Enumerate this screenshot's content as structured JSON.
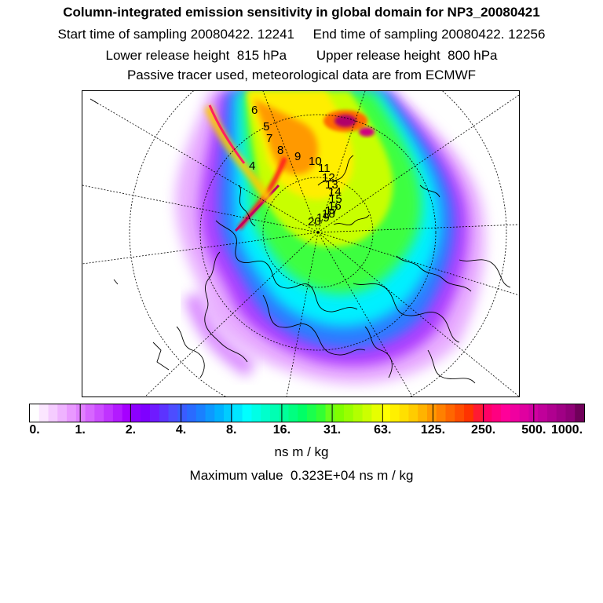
{
  "title": "Column-integrated emission sensitivity in global domain for NP3_20080421",
  "sampling_line": "Start time of sampling 20080422. 12241     End time of sampling 20080422. 12256",
  "release_line": "Lower release height  815 hPa        Upper release height  800 hPa",
  "tracer_line": "Passive tracer used, meteorological data are from ECMWF",
  "colorbar": {
    "labels": [
      "0.",
      "1.",
      "2.",
      "4.",
      "8.",
      "16.",
      "31.",
      "63.",
      "125.",
      "250.",
      "500.",
      "1000."
    ],
    "colors": [
      "#ffffff",
      "#fbe6ff",
      "#f5ccff",
      "#efb3ff",
      "#e999ff",
      "#e080ff",
      "#d766ff",
      "#cc4dff",
      "#c033ff",
      "#b31aff",
      "#a600ff",
      "#8c00ff",
      "#7f00ff",
      "#6f1aff",
      "#5c33ff",
      "#4d4dff",
      "#3a5cff",
      "#2a6bff",
      "#1a80ff",
      "#0d99ff",
      "#00b2ff",
      "#00ccff",
      "#00e6ff",
      "#00ffff",
      "#00ffe6",
      "#00ffcc",
      "#00ffb3",
      "#00ff99",
      "#00ff80",
      "#00ff66",
      "#1aff4d",
      "#33ff33",
      "#66ff1a",
      "#80ff00",
      "#99ff00",
      "#b3ff00",
      "#ccff00",
      "#e6ff00",
      "#ffff00",
      "#fff000",
      "#ffe000",
      "#ffcc00",
      "#ffb300",
      "#ff9900",
      "#ff8000",
      "#ff6600",
      "#ff4d00",
      "#ff3300",
      "#ff1a33",
      "#ff0066",
      "#ff0080",
      "#ff0099",
      "#f000a0",
      "#e000a0",
      "#d000a0",
      "#c0009a",
      "#b00090",
      "#a00085",
      "#900078",
      "#70005a"
    ],
    "unit": "ns m / kg"
  },
  "max_value_text": "Maximum value  0.323E+04 ns m / kg",
  "trajectory_labels": [
    "6",
    "5",
    "7",
    "4",
    "8",
    "9",
    "10",
    "11",
    "12",
    "13",
    "14",
    "15",
    "16",
    "17",
    "18",
    "19",
    "20"
  ]
}
